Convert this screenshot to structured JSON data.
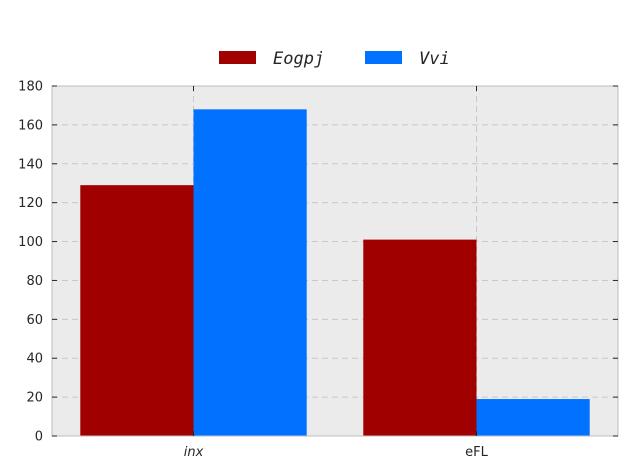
{
  "chart_data": {
    "type": "bar",
    "categories": [
      "inx",
      "eFL"
    ],
    "series": [
      {
        "name": "Eogpj",
        "values": [
          129,
          101
        ],
        "color": "#a00000"
      },
      {
        "name": "Vvi",
        "values": [
          168,
          19
        ],
        "color": "#0072ff"
      }
    ],
    "title": "",
    "xlabel": "",
    "ylabel": "",
    "ylim": [
      0,
      180
    ],
    "yticks": [
      0,
      20,
      40,
      60,
      80,
      100,
      120,
      140,
      160,
      180
    ],
    "ytick_labels": [
      "0",
      "20",
      "40",
      "60",
      "80",
      "100",
      "120",
      "140",
      "160",
      "180"
    ],
    "grid": true,
    "legend_position": "top-center",
    "background_color": "#ebebeb"
  }
}
